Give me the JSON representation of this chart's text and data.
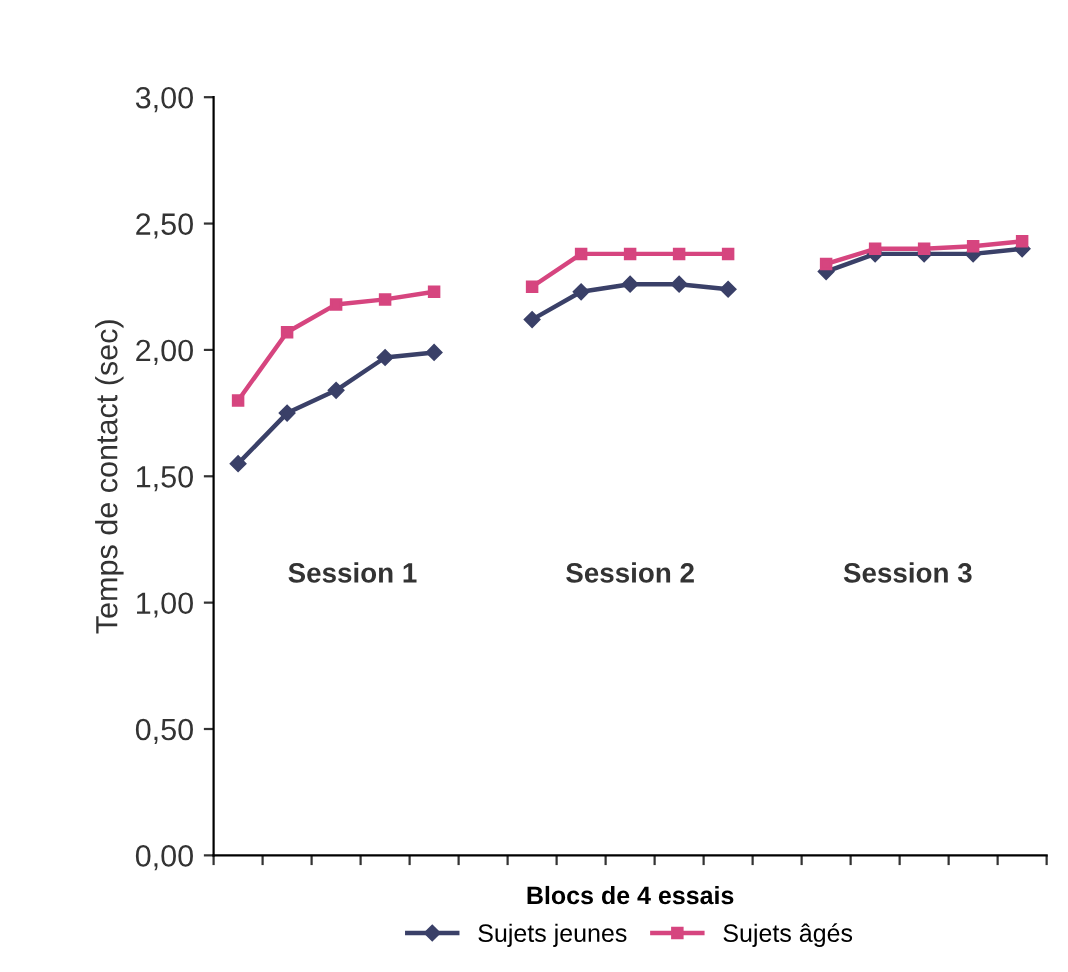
{
  "chart_data": {
    "type": "line",
    "xlabel": "Blocs de 4 essais",
    "ylabel": "Temps de contact (sec)",
    "categories": [
      null,
      null,
      null,
      null,
      null,
      null,
      null,
      null,
      null,
      null,
      null,
      null,
      null,
      null,
      null,
      null,
      null
    ],
    "series": [
      {
        "name": "Sujets jeunes",
        "color": "#3a4068",
        "marker": "diamond",
        "values": [
          1.55,
          1.75,
          1.84,
          1.97,
          1.99,
          null,
          2.12,
          2.23,
          2.26,
          2.26,
          2.24,
          null,
          2.31,
          2.38,
          2.38,
          2.38,
          2.4
        ]
      },
      {
        "name": "Sujets âgés",
        "color": "#d6457f",
        "marker": "square",
        "values": [
          1.8,
          2.07,
          2.18,
          2.2,
          2.23,
          null,
          2.25,
          2.38,
          2.38,
          2.38,
          2.38,
          null,
          2.34,
          2.4,
          2.4,
          2.41,
          2.43
        ]
      }
    ],
    "ylim": [
      0,
      3
    ],
    "yticks": [
      {
        "value": 0,
        "label": "0,00"
      },
      {
        "value": 0.5,
        "label": "0,50"
      },
      {
        "value": 1,
        "label": "1,00"
      },
      {
        "value": 1.5,
        "label": "1,50"
      },
      {
        "value": 2,
        "label": "2,00"
      },
      {
        "value": 2.5,
        "label": "2,50"
      },
      {
        "value": 3,
        "label": "3,00"
      }
    ],
    "annotations": [
      "Session 1",
      "Session 2",
      "Session 3"
    ],
    "grid": false,
    "legend": "bottom",
    "line_style": "solid"
  }
}
